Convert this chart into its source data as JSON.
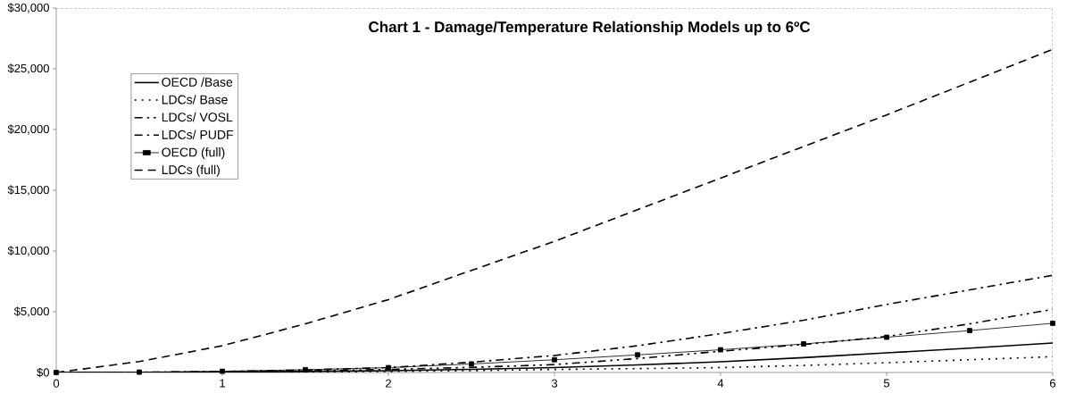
{
  "chart_data": {
    "type": "line",
    "title": "Chart 1 - Damage/Temperature Relationship Models up to 6ºC",
    "x": [
      0,
      0.5,
      1,
      1.5,
      2,
      2.5,
      3,
      3.5,
      4,
      4.5,
      5,
      5.5,
      6
    ],
    "series": [
      {
        "name": "OECD /Base",
        "color": "#000000",
        "line_style": "solid",
        "values": [
          0,
          0,
          30,
          80,
          150,
          260,
          400,
          620,
          880,
          1220,
          1620,
          2000,
          2430
        ]
      },
      {
        "name": "LDCs/ Base",
        "color": "#000000",
        "line_style": "dotted",
        "values": [
          0,
          0,
          20,
          45,
          80,
          150,
          250,
          320,
          400,
          580,
          800,
          1050,
          1300
        ]
      },
      {
        "name": "LDCs/ VOSL",
        "color": "#000000",
        "line_style": "dashdotdot",
        "values": [
          0,
          10,
          50,
          130,
          250,
          420,
          650,
          1150,
          1750,
          2300,
          2960,
          4000,
          5200
        ]
      },
      {
        "name": "LDCs/ PUDF",
        "color": "#000000",
        "line_style": "dashdot",
        "values": [
          0,
          20,
          80,
          200,
          400,
          850,
          1400,
          2200,
          3200,
          4300,
          5600,
          6800,
          8000
        ]
      },
      {
        "name": "OECD (full)",
        "color": "#000000",
        "line_style": "solid",
        "marker": "square",
        "values": [
          0,
          30,
          100,
          230,
          400,
          700,
          1050,
          1450,
          1870,
          2350,
          2900,
          3450,
          4050
        ]
      },
      {
        "name": "LDCs (full)",
        "color": "#000000",
        "line_style": "dashed",
        "values": [
          0,
          900,
          2200,
          4000,
          6000,
          8400,
          10800,
          13400,
          16000,
          18600,
          21200,
          23900,
          26600
        ]
      }
    ],
    "xlim": [
      0,
      6
    ],
    "xticks": [
      0,
      1,
      2,
      3,
      4,
      5,
      6
    ],
    "ylim": [
      0,
      30000
    ],
    "yticks": [
      {
        "value": 0,
        "label": "$0"
      },
      {
        "value": 5000,
        "label": "$5,000"
      },
      {
        "value": 10000,
        "label": "$10,000"
      },
      {
        "value": 15000,
        "label": "$15,000"
      },
      {
        "value": 20000,
        "label": "$20,000"
      },
      {
        "value": 25000,
        "label": "$25,000"
      },
      {
        "value": 30000,
        "label": "$30,000"
      }
    ],
    "grid": false,
    "legend": "top left"
  }
}
